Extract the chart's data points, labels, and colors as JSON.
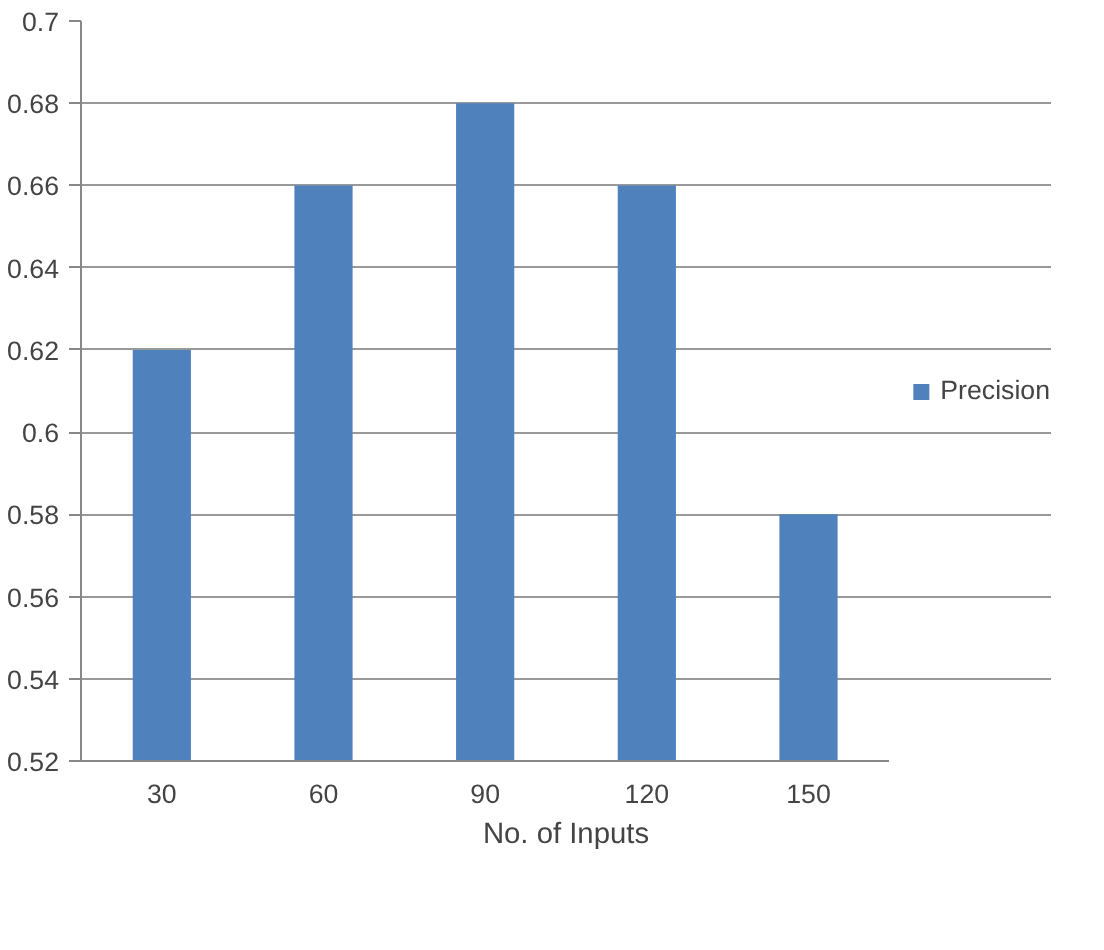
{
  "chart_data": {
    "type": "bar",
    "xlabel": "No. of Inputs",
    "categories": [
      "30",
      "60",
      "90",
      "120",
      "150"
    ],
    "series": [
      {
        "name": "Precision",
        "color": "#4f81bd",
        "values": [
          0.62,
          0.66,
          0.68,
          0.66,
          0.58
        ]
      }
    ],
    "ylim": [
      0.52,
      0.7
    ],
    "yticks": [
      0.52,
      0.54,
      0.56,
      0.58,
      0.6,
      0.62,
      0.64,
      0.66,
      0.68,
      0.7
    ],
    "grid": "y",
    "legend": "right"
  }
}
